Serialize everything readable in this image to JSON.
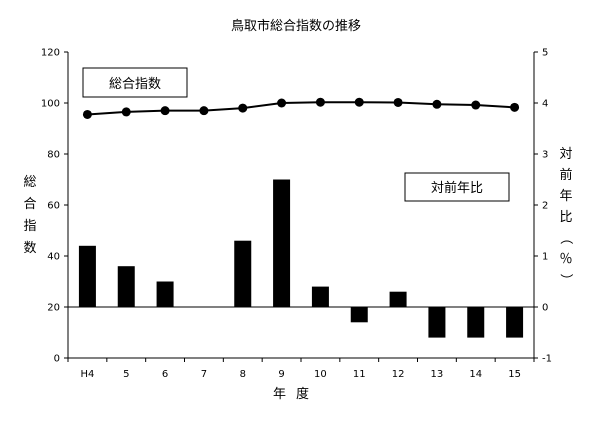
{
  "chart_data": {
    "type": "bar+line",
    "title": "鳥取市総合指数の推移",
    "xlabel": "年度",
    "categories": [
      "H4",
      "5",
      "6",
      "7",
      "8",
      "9",
      "10",
      "11",
      "12",
      "13",
      "14",
      "15"
    ],
    "left_axis": {
      "label": "総合指数",
      "ylim": [
        0,
        120
      ],
      "ticks": [
        "0",
        "20",
        "40",
        "60",
        "80",
        "100",
        "120"
      ]
    },
    "right_axis": {
      "label": "対前年比（％）",
      "ylim": [
        -1,
        5
      ],
      "ticks": [
        "-1",
        "0",
        "1",
        "2",
        "3",
        "4",
        "5"
      ]
    },
    "series": [
      {
        "name": "総合指数",
        "type": "line",
        "axis": "left",
        "values": [
          95.5,
          96.5,
          97,
          97,
          98,
          100,
          100.3,
          100.3,
          100.2,
          99.5,
          99.2,
          98.3
        ]
      },
      {
        "name": "対前年比",
        "type": "bar",
        "axis": "right",
        "values": [
          1.2,
          0.8,
          0.5,
          0.0,
          1.3,
          2.5,
          0.4,
          -0.3,
          0.3,
          -0.6,
          -0.6,
          -0.6
        ]
      }
    ],
    "grid": false,
    "colors": {
      "bars": "#000000",
      "line": "#000000",
      "markers": "#000000"
    }
  }
}
